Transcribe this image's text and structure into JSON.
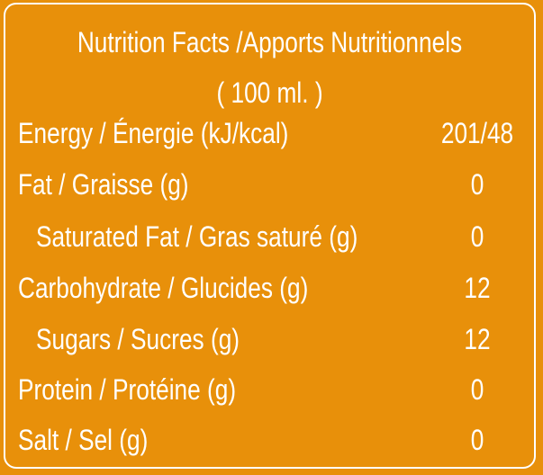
{
  "header": {
    "title": "Nutrition Facts /Apports Nutritionnels",
    "serving": "( 100 ml. )"
  },
  "rows": [
    {
      "label": "Energy / Énergie  (kJ/kcal)",
      "value": "201/48"
    },
    {
      "label": "Fat / Graisse  (g)",
      "value": "0"
    },
    {
      "label": "Saturated Fat / Gras saturé (g)",
      "value": "0"
    },
    {
      "label": "Carbohydrate / Glucides (g)",
      "value": "12"
    },
    {
      "label": "Sugars / Sucres (g)",
      "value": "12"
    },
    {
      "label": "Protein / Protéine (g)",
      "value": "0"
    },
    {
      "label": "Salt / Sel (g)",
      "value": "0"
    }
  ],
  "colors": {
    "background": "#e8900a",
    "text": "#ffffff",
    "border": "#ffffff"
  }
}
